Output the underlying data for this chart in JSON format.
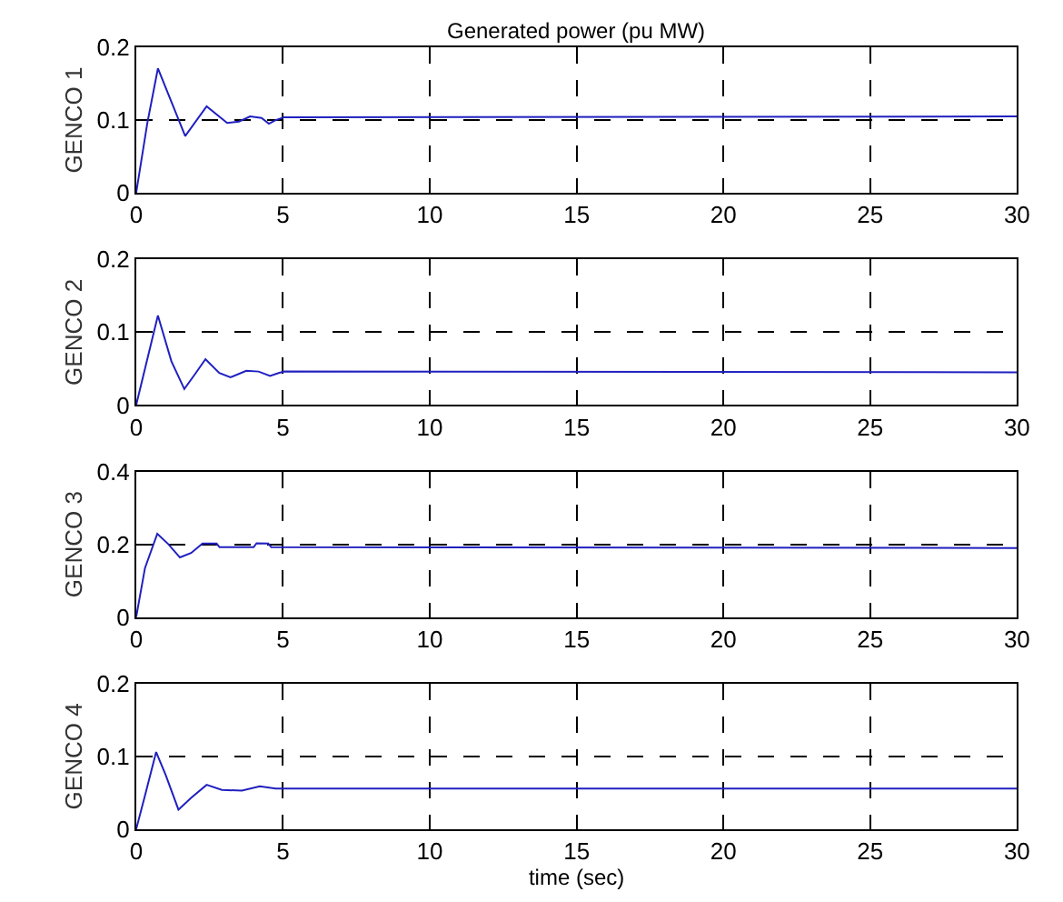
{
  "chart_data": [
    {
      "type": "line",
      "title": "Generated power (pu MW)",
      "ylabel": "GENCO 1",
      "xlim": [
        0,
        30
      ],
      "xticks": [
        0,
        5,
        10,
        15,
        20,
        25,
        30
      ],
      "ylim": [
        0,
        0.2
      ],
      "yticks": [
        0,
        0.1,
        0.2
      ],
      "grid": true,
      "line_style": "solid",
      "marker": "none",
      "series": [
        {
          "color": "#2020c0",
          "x": [
            0,
            0.38,
            0.74,
            1.67,
            2.4,
            3.1,
            3.5,
            3.88,
            4.27,
            4.52,
            4.75,
            5.04,
            30
          ],
          "values": [
            0,
            0.096,
            0.171,
            0.078,
            0.119,
            0.096,
            0.098,
            0.105,
            0.103,
            0.095,
            0.1,
            0.104,
            0.105
          ]
        }
      ]
    },
    {
      "type": "line",
      "ylabel": "GENCO 2",
      "xlim": [
        0,
        30
      ],
      "xticks": [
        0,
        5,
        10,
        15,
        20,
        25,
        30
      ],
      "ylim": [
        0,
        0.2
      ],
      "yticks": [
        0,
        0.1,
        0.2
      ],
      "grid": true,
      "line_style": "solid",
      "marker": "none",
      "series": [
        {
          "color": "#2020c0",
          "x": [
            0,
            0.36,
            0.74,
            1.2,
            1.64,
            2.03,
            2.36,
            2.83,
            3.21,
            3.75,
            4.17,
            4.56,
            4.85,
            5.04,
            30
          ],
          "values": [
            0,
            0.06,
            0.123,
            0.06,
            0.022,
            0.044,
            0.063,
            0.044,
            0.038,
            0.047,
            0.046,
            0.04,
            0.044,
            0.046,
            0.045
          ]
        }
      ]
    },
    {
      "type": "line",
      "ylabel": "GENCO 3",
      "xlim": [
        0,
        30
      ],
      "xticks": [
        0,
        5,
        10,
        15,
        20,
        25,
        30
      ],
      "ylim": [
        0,
        0.4
      ],
      "yticks": [
        0,
        0.2,
        0.4
      ],
      "grid": true,
      "line_style": "solid",
      "marker": "none",
      "series": [
        {
          "color": "#2020c0",
          "x": [
            0,
            0.3,
            0.72,
            1.1,
            1.49,
            1.87,
            2.26,
            2.74,
            2.84,
            4.0,
            4.1,
            4.5,
            4.6,
            30
          ],
          "values": [
            0,
            0.135,
            0.229,
            0.2,
            0.164,
            0.176,
            0.202,
            0.202,
            0.192,
            0.192,
            0.203,
            0.202,
            0.192,
            0.19
          ]
        }
      ]
    },
    {
      "type": "line",
      "ylabel": "GENCO 4",
      "xlabel": "time (sec)",
      "xlim": [
        0,
        30
      ],
      "xticks": [
        0,
        5,
        10,
        15,
        20,
        25,
        30
      ],
      "ylim": [
        0,
        0.2
      ],
      "yticks": [
        0,
        0.1,
        0.2
      ],
      "grid": true,
      "line_style": "solid",
      "marker": "none",
      "series": [
        {
          "color": "#2020c0",
          "x": [
            0,
            0.33,
            0.68,
            1.0,
            1.44,
            1.87,
            2.4,
            2.92,
            3.6,
            4.21,
            4.75,
            30
          ],
          "values": [
            0,
            0.051,
            0.106,
            0.075,
            0.027,
            0.043,
            0.061,
            0.054,
            0.053,
            0.059,
            0.056,
            0.056
          ]
        }
      ]
    }
  ]
}
